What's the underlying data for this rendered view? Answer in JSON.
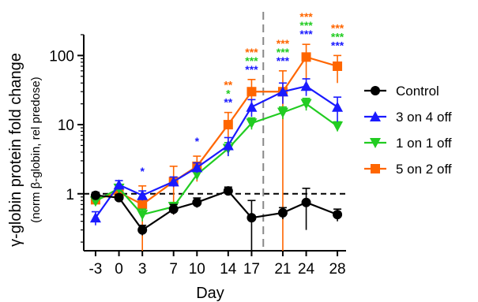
{
  "chart_data": {
    "type": "line",
    "xlabel": "Day",
    "ylabel": "γ-globin protein fold change",
    "ylabel_sub": "(norm β-globin, rel predose)",
    "yscale": "log",
    "ylim": [
      0.15,
      200
    ],
    "xlim": [
      -3,
      28
    ],
    "x_ticks": [
      -3,
      0,
      3,
      7,
      10,
      14,
      17,
      21,
      24,
      28
    ],
    "x_tick_labels": [
      "-3",
      "0",
      "3",
      "7",
      "10",
      "14",
      "17",
      "21",
      "24",
      "28"
    ],
    "y_ticks": [
      1,
      10,
      100
    ],
    "y_tick_labels": [
      "1",
      "10",
      "100"
    ],
    "reference_line": {
      "y": 1,
      "style": "dashed"
    },
    "vertical_line": {
      "x": 18.5,
      "style": "dashed",
      "color": "#888888"
    },
    "legend_position": "right",
    "series": [
      {
        "name": "Control",
        "color": "#000000",
        "marker": "circle",
        "x": [
          -3,
          0,
          3,
          7,
          10,
          14,
          17,
          21,
          24,
          28
        ],
        "y": [
          0.95,
          0.88,
          0.3,
          0.6,
          0.75,
          1.1,
          0.45,
          0.53,
          0.75,
          0.5
        ],
        "err": [
          0.1,
          0.1,
          0.05,
          0.1,
          0.12,
          0.15,
          0.35,
          0.1,
          0.45,
          0.1
        ]
      },
      {
        "name": "3 on 4 off",
        "color": "#1a1aff",
        "marker": "triangle-up",
        "x": [
          -3,
          0,
          3,
          7,
          10,
          14,
          17,
          21,
          24,
          28
        ],
        "y": [
          0.45,
          1.35,
          0.95,
          1.5,
          2.4,
          5.0,
          18,
          30,
          36,
          18
        ],
        "err": [
          0.1,
          0.2,
          0.15,
          0.25,
          0.4,
          1.5,
          5,
          10,
          10,
          7
        ]
      },
      {
        "name": "1 on 1 off",
        "color": "#22cc22",
        "marker": "triangle-down",
        "x": [
          -3,
          0,
          3,
          7,
          10,
          14,
          17,
          21,
          24,
          28
        ],
        "y": [
          0.78,
          1.2,
          0.5,
          0.65,
          1.9,
          4.5,
          10.5,
          15,
          20,
          9.5
        ],
        "err": [
          0.1,
          0.15,
          0.1,
          0.1,
          0.3,
          1,
          2,
          3,
          4,
          1.5
        ]
      },
      {
        "name": "5 on 2 off",
        "color": "#ff6600",
        "marker": "square",
        "x": [
          -3,
          0,
          3,
          7,
          10,
          14,
          17,
          21,
          24,
          28
        ],
        "y": [
          0.82,
          1.05,
          0.7,
          1.5,
          2.5,
          10,
          30,
          30,
          95,
          70
        ],
        "err": [
          0.1,
          0.15,
          0.6,
          1.0,
          1.0,
          5,
          15,
          30,
          50,
          30
        ]
      }
    ],
    "annotations": [
      {
        "x": 3,
        "rows": [
          {
            "text": "*",
            "color": "#1a1aff"
          }
        ]
      },
      {
        "x": 10,
        "rows": [
          {
            "text": "*",
            "color": "#1a1aff"
          }
        ]
      },
      {
        "x": 14,
        "rows": [
          {
            "text": "**",
            "color": "#ff6600"
          },
          {
            "text": "*",
            "color": "#22cc22"
          },
          {
            "text": "**",
            "color": "#1a1aff"
          }
        ]
      },
      {
        "x": 17,
        "rows": [
          {
            "text": "***",
            "color": "#ff6600"
          },
          {
            "text": "***",
            "color": "#22cc22"
          },
          {
            "text": "***",
            "color": "#1a1aff"
          }
        ]
      },
      {
        "x": 21,
        "rows": [
          {
            "text": "***",
            "color": "#ff6600"
          },
          {
            "text": "***",
            "color": "#22cc22"
          },
          {
            "text": "***",
            "color": "#1a1aff"
          }
        ]
      },
      {
        "x": 24,
        "rows": [
          {
            "text": "***",
            "color": "#ff6600"
          },
          {
            "text": "***",
            "color": "#22cc22"
          },
          {
            "text": "***",
            "color": "#1a1aff"
          }
        ]
      },
      {
        "x": 28,
        "rows": [
          {
            "text": "***",
            "color": "#ff6600"
          },
          {
            "text": "***",
            "color": "#22cc22"
          },
          {
            "text": "***",
            "color": "#1a1aff"
          }
        ]
      }
    ]
  }
}
